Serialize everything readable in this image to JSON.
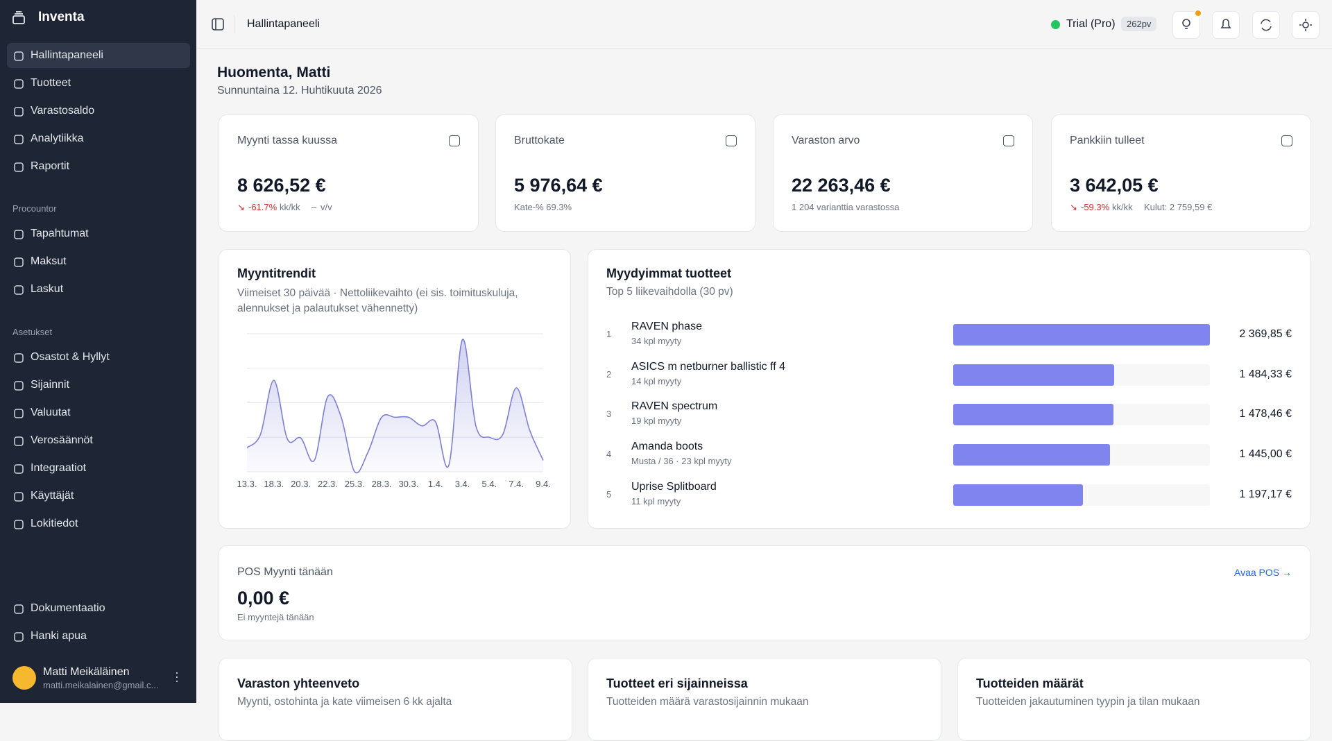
{
  "sidebar": {
    "brand": "Inventa",
    "nav": [
      "Hallintapaneeli",
      "Tuotteet",
      "Varastosaldo",
      "Analytiikka",
      "Raportit"
    ],
    "sections": [
      {
        "title": "Procountor",
        "items": [
          "Tapahtumat",
          "Maksut",
          "Laskut"
        ]
      },
      {
        "title": "Asetukset",
        "items": [
          "Osastot & Hyllyt",
          "Sijainnit",
          "Valuutat",
          "Verosäännöt",
          "Integraatiot",
          "Käyttäjät",
          "Lokitiedot"
        ]
      }
    ],
    "footer": [
      "Dokumentaatio",
      "Hanki apua"
    ],
    "user": {
      "name": "Matti Meikäläinen",
      "email": "matti.meikalainen@gmail.c..."
    }
  },
  "header": {
    "page": "Hallintapaneeli",
    "plan": "Trial (Pro)",
    "days": "262pv"
  },
  "greeting": {
    "title": "Huomenta, Matti",
    "date": "Sunnuntaina 12. Huhtikuuta 2026"
  },
  "kpis": [
    {
      "label": "Myynti tassa kuussa",
      "value": "8 626,52 €",
      "change": "-61.7%",
      "period": "kk/kk",
      "yoy_change": "–",
      "yoy_label": "v/v"
    },
    {
      "label": "Bruttokate",
      "value": "5 976,64 €",
      "note": "Kate-% 69.3%"
    },
    {
      "label": "Varaston arvo",
      "value": "22 263,46 €",
      "note": "1 204 varianttia varastossa"
    },
    {
      "label": "Pankkiin tulleet",
      "value": "3 642,05 €",
      "change": "-59.3%",
      "period": "kk/kk",
      "note": "Kulut: 2 759,59 €"
    }
  ],
  "chart_data": {
    "type": "line",
    "title": "Myyntitrendit",
    "subtitle": "Viimeiset 30 päivää · Nettoliikevaihto (ei sis. toimituskuluja, alennukset ja palautukset vähennetty)",
    "categories": [
      "13.3.",
      null,
      "18.3.",
      null,
      "20.3.",
      null,
      "22.3.",
      null,
      "25.3.",
      null,
      "28.3.",
      null,
      "30.3.",
      null,
      "1.4.",
      null,
      "3.4.",
      null,
      "5.4.",
      null,
      "7.4.",
      null,
      "9.4."
    ],
    "values": [
      0.7,
      1.08,
      2.65,
      0.95,
      0.98,
      0.33,
      2.18,
      1.58,
      0,
      0.58,
      1.58,
      1.58,
      1.58,
      1.33,
      1.45,
      0.2,
      3.83,
      1.33,
      1.0,
      1.08,
      2.43,
      1.2,
      0.33
    ],
    "color": "#7c7fd8",
    "ylim": [
      0,
      4
    ],
    "grid": true
  },
  "top_products": {
    "title": "Myydyimmat tuotteet",
    "subtitle": "Top 5 liikevaihdolla (30 pv)",
    "color": "#7f84ee",
    "ranks": [
      1,
      2,
      3,
      4,
      5
    ],
    "names": [
      "RAVEN phase",
      "ASICS m netburner ballistic ff 4",
      "RAVEN spectrum",
      "Amanda boots",
      "Uprise Splitboard"
    ],
    "notes": [
      "34 kpl myyty",
      "14 kpl myyty",
      "19 kpl myyty",
      "Musta / 36 · 23 kpl myyty",
      "11 kpl myyty"
    ],
    "values": [
      2369.85,
      1484.33,
      1478.46,
      1445.0,
      1197.17
    ],
    "value_labels": [
      "2 369,85 €",
      "1 484,33 €",
      "1 478,46 €",
      "1 445,00 €",
      "1 197,17 €"
    ]
  },
  "pos": {
    "title": "POS Myynti tänään",
    "value": "0,00 €",
    "note": "Ei myyntejä tänään",
    "link": "Avaa POS →"
  },
  "bottom_cards": [
    {
      "title": "Varaston yhteenveto",
      "subtitle": "Myynti, ostohinta ja kate viimeisen 6 kk ajalta"
    },
    {
      "title": "Tuotteet eri sijainneissa",
      "subtitle": "Tuotteiden määrä varastosijainnin mukaan"
    },
    {
      "title": "Tuotteiden määrät",
      "subtitle": "Tuotteiden jakautuminen tyypin ja tilan mukaan"
    }
  ]
}
